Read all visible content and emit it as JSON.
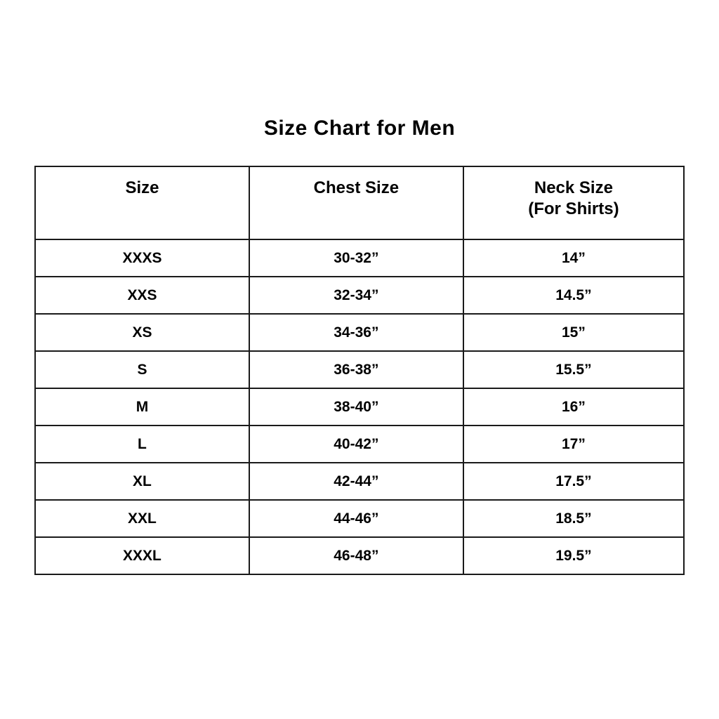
{
  "page": {
    "background_color": "#ffffff",
    "text_color": "#000000",
    "border_color": "#1a1a1a"
  },
  "chart_data": {
    "type": "table",
    "title": "Size Chart for Men",
    "columns": [
      "Size",
      "Chest Size",
      "Neck Size (For Shirts)"
    ],
    "header": {
      "size_line1": "Size",
      "size_line2": "",
      "chest_line1": "Chest Size",
      "chest_line2": "",
      "neck_line1": "Neck Size",
      "neck_line2": "(For Shirts)"
    },
    "rows": [
      {
        "size": "XXXS",
        "chest": "30-32”",
        "neck": "14”"
      },
      {
        "size": "XXS",
        "chest": "32-34”",
        "neck": "14.5”"
      },
      {
        "size": "XS",
        "chest": "34-36”",
        "neck": "15”"
      },
      {
        "size": "S",
        "chest": "36-38”",
        "neck": "15.5”"
      },
      {
        "size": "M",
        "chest": "38-40”",
        "neck": "16”"
      },
      {
        "size": "L",
        "chest": "40-42”",
        "neck": "17”"
      },
      {
        "size": "XL",
        "chest": "42-44”",
        "neck": "17.5”"
      },
      {
        "size": "XXL",
        "chest": "44-46”",
        "neck": "18.5”"
      },
      {
        "size": "XXXL",
        "chest": "46-48”",
        "neck": "19.5”"
      }
    ]
  }
}
